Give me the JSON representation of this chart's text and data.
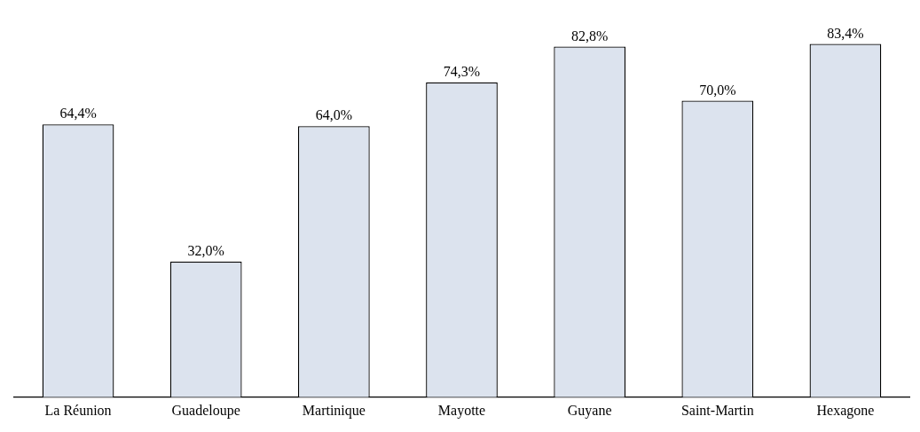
{
  "chart_data": {
    "type": "bar",
    "categories": [
      "La Réunion",
      "Guadeloupe",
      "Martinique",
      "Mayotte",
      "Guyane",
      "Saint-Martin",
      "Hexagone"
    ],
    "values": [
      64.4,
      32.0,
      64.0,
      74.3,
      82.8,
      70.0,
      83.4
    ],
    "value_labels": [
      "64,4%",
      "32,0%",
      "64,0%",
      "74,3%",
      "82,8%",
      "70,0%",
      "83,4%"
    ],
    "color": "#dce3ee",
    "grid": false,
    "legend": false
  }
}
